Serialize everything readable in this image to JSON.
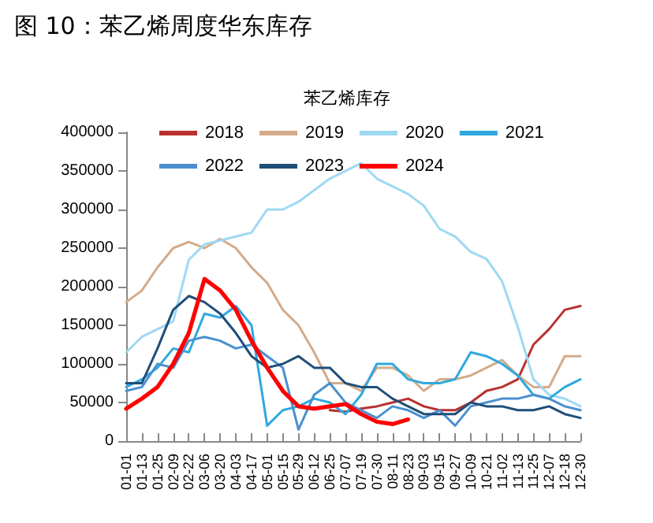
{
  "chart_data": {
    "type": "line",
    "title": "图 10：苯乙烯周度华东库存",
    "subtitle": "苯乙烯库存",
    "categories": [
      "01-01",
      "01-13",
      "01-25",
      "02-09",
      "02-22",
      "03-06",
      "03-20",
      "04-03",
      "04-17",
      "05-01",
      "05-15",
      "05-29",
      "06-12",
      "06-25",
      "07-07",
      "07-19",
      "07-30",
      "08-11",
      "08-23",
      "09-03",
      "09-15",
      "09-27",
      "10-09",
      "10-21",
      "11-02",
      "11-13",
      "11-25",
      "12-07",
      "12-18",
      "12-30"
    ],
    "series": [
      {
        "name": "2018",
        "color": "#b8312f",
        "values": [
          null,
          null,
          null,
          null,
          null,
          null,
          null,
          null,
          null,
          null,
          null,
          null,
          null,
          40000,
          38000,
          42000,
          45000,
          50000,
          55000,
          45000,
          40000,
          40000,
          50000,
          65000,
          70000,
          80000,
          125000,
          145000,
          170000,
          175000
        ]
      },
      {
        "name": "2019",
        "color": "#d4ab8a",
        "values": [
          180000,
          195000,
          225000,
          250000,
          258000,
          250000,
          262000,
          250000,
          225000,
          205000,
          170000,
          150000,
          115000,
          75000,
          75000,
          65000,
          95000,
          95000,
          85000,
          65000,
          80000,
          80000,
          85000,
          95000,
          105000,
          85000,
          70000,
          70000,
          110000,
          110000
        ]
      },
      {
        "name": "2020",
        "color": "#9fd8f3",
        "values": [
          115000,
          135000,
          145000,
          155000,
          235000,
          255000,
          260000,
          265000,
          270000,
          300000,
          300000,
          310000,
          325000,
          340000,
          350000,
          360000,
          340000,
          330000,
          320000,
          305000,
          275000,
          265000,
          245000,
          236000,
          207000,
          148000,
          80000,
          60000,
          55000,
          45000
        ]
      },
      {
        "name": "2021",
        "color": "#2fa8e0",
        "values": [
          70000,
          80000,
          95000,
          120000,
          115000,
          165000,
          160000,
          175000,
          150000,
          20000,
          40000,
          45000,
          55000,
          50000,
          35000,
          60000,
          100000,
          100000,
          80000,
          75000,
          75000,
          80000,
          115000,
          110000,
          100000,
          85000,
          60000,
          55000,
          70000,
          80000
        ]
      },
      {
        "name": "2022",
        "color": "#4a90d0",
        "values": [
          65000,
          70000,
          100000,
          95000,
          130000,
          135000,
          130000,
          120000,
          125000,
          110000,
          95000,
          15000,
          60000,
          75000,
          50000,
          40000,
          30000,
          45000,
          40000,
          30000,
          40000,
          20000,
          45000,
          50000,
          55000,
          55000,
          60000,
          55000,
          45000,
          40000
        ]
      },
      {
        "name": "2023",
        "color": "#1f4e79",
        "values": [
          75000,
          75000,
          120000,
          170000,
          188000,
          180000,
          165000,
          140000,
          110000,
          95000,
          100000,
          110000,
          95000,
          95000,
          75000,
          70000,
          70000,
          55000,
          45000,
          35000,
          35000,
          35000,
          50000,
          45000,
          45000,
          40000,
          40000,
          45000,
          35000,
          30000
        ]
      },
      {
        "name": "2024",
        "color": "#ff0000",
        "values": [
          42000,
          55000,
          70000,
          100000,
          140000,
          210000,
          195000,
          170000,
          130000,
          95000,
          65000,
          45000,
          42000,
          45000,
          48000,
          35000,
          25000,
          22000,
          28000,
          null,
          null,
          null,
          null,
          null,
          null,
          null,
          null,
          null,
          null,
          null
        ]
      }
    ],
    "ylim": [
      0,
      400000
    ],
    "yticks": [
      0,
      50000,
      100000,
      150000,
      200000,
      250000,
      300000,
      350000,
      400000
    ],
    "grid": false,
    "legend": "top",
    "marker": "none",
    "line_style": "solid"
  }
}
